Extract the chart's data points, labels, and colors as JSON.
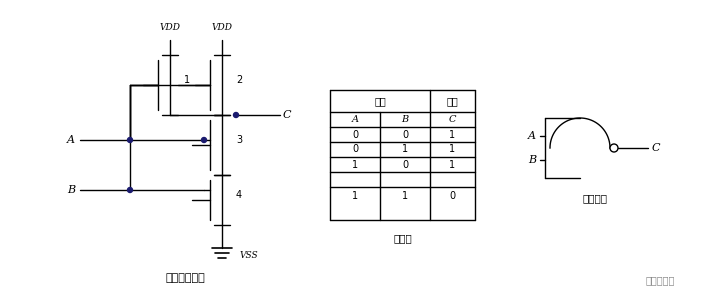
{
  "title_left": "与非门原理图",
  "title_middle": "真值表",
  "title_right": "逻辑符号",
  "truth_table": {
    "header_input": "输入",
    "header_output": "输出",
    "col_headers": [
      "A",
      "B",
      "C"
    ],
    "rows": [
      [
        "0",
        "0",
        "1"
      ],
      [
        "0",
        "1",
        "1"
      ],
      [
        "1",
        "0",
        "1"
      ],
      [
        "1",
        "1",
        "0"
      ]
    ]
  },
  "bg_color": "#ffffff",
  "line_color": "#000000",
  "text_color": "#000000",
  "vdd_label": "VDD",
  "vss_label": "VSS",
  "label_A": "A",
  "label_B": "B",
  "label_C": "C",
  "transistor_labels": [
    "1",
    "2",
    "3",
    "4"
  ],
  "watermark": "面包板社区"
}
